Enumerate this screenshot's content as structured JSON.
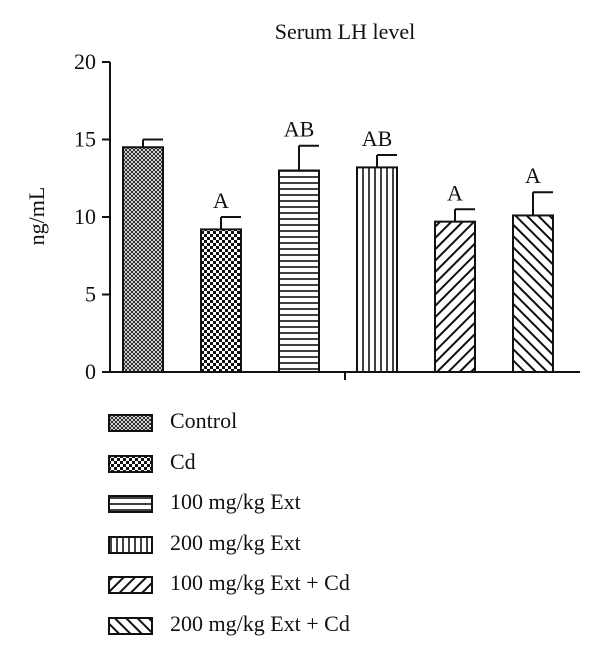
{
  "chart_data": {
    "type": "bar",
    "title": "Serum LH level",
    "xlabel": "",
    "ylabel": "ng/mL",
    "ylim": [
      0,
      20
    ],
    "yticks": [
      "0",
      "5",
      "10",
      "15",
      "20"
    ],
    "categories": [
      "Control",
      "Cd",
      "100 mg/kg Ext",
      "200 mg/kg Ext",
      "100 mg/kg Ext + Cd",
      "200 mg/kg Ext + Cd"
    ],
    "values": [
      14.5,
      9.2,
      13.0,
      13.2,
      9.7,
      10.1
    ],
    "errors": [
      0.5,
      0.8,
      1.6,
      0.8,
      0.8,
      1.5
    ],
    "annotations": [
      "",
      "A",
      "AB",
      "AB",
      "A",
      "A"
    ],
    "patterns": [
      "fine-crosshatch",
      "checkerboard",
      "horizontal-lines",
      "vertical-lines",
      "forward-diagonal",
      "backward-diagonal"
    ],
    "legend_position": "bottom",
    "grid": false,
    "bar_color": "#111111"
  }
}
